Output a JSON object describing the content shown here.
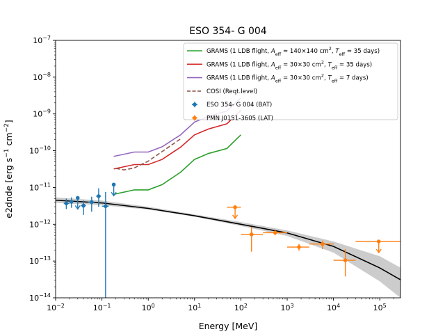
{
  "chart_data": {
    "type": "scatter",
    "title": "ESO 354- G 004",
    "xlabel": "Energy [MeV]",
    "ylabel": "e2dnde [erg s$^{-1}$ cm$^{-2}$]",
    "xscale": "log",
    "yscale": "log",
    "xlim": [
      0.01,
      280000
    ],
    "ylim": [
      1e-14,
      1e-07
    ],
    "grid": false,
    "legend_position": "top-right",
    "x_ticks": [
      {
        "value": 0.01,
        "base": "10",
        "exp": "−2"
      },
      {
        "value": 0.1,
        "base": "10",
        "exp": "−1"
      },
      {
        "value": 1,
        "base": "10",
        "exp": "0"
      },
      {
        "value": 10,
        "base": "10",
        "exp": "1"
      },
      {
        "value": 100,
        "base": "10",
        "exp": "2"
      },
      {
        "value": 1000,
        "base": "10",
        "exp": "3"
      },
      {
        "value": 10000,
        "base": "10",
        "exp": "4"
      },
      {
        "value": 100000,
        "base": "10",
        "exp": "5"
      }
    ],
    "y_ticks": [
      {
        "value": 1e-14,
        "base": "10",
        "exp": "−14"
      },
      {
        "value": 1e-13,
        "base": "10",
        "exp": "−13"
      },
      {
        "value": 1e-12,
        "base": "10",
        "exp": "−12"
      },
      {
        "value": 1e-11,
        "base": "10",
        "exp": "−11"
      },
      {
        "value": 1e-10,
        "base": "10",
        "exp": "−10"
      },
      {
        "value": 1e-09,
        "base": "10",
        "exp": "−9"
      },
      {
        "value": 1e-08,
        "base": "10",
        "exp": "−8"
      },
      {
        "value": 1e-07,
        "base": "10",
        "exp": "−7"
      }
    ],
    "lines": [
      {
        "name": "GRAMS (1 LDB flight, A_eff = 140×140 cm², T_eff = 35 days)",
        "color": "#2ca02c",
        "style": "solid",
        "x": [
          0.18,
          0.5,
          1,
          2,
          5,
          10,
          20,
          50,
          100
        ],
        "y": [
          6.5e-12,
          8.6e-12,
          8.6e-12,
          1.2e-11,
          2.6e-11,
          5.8e-11,
          8.4e-11,
          1.15e-10,
          2.7e-10
        ]
      },
      {
        "name": "GRAMS (1 LDB flight, A_eff = 30×30 cm², T_eff = 35 days)",
        "color": "#d62728",
        "style": "solid",
        "x": [
          0.18,
          0.5,
          1,
          2,
          5,
          10,
          20,
          50,
          100
        ],
        "y": [
          3.2e-11,
          4.2e-11,
          4.2e-11,
          5.8e-11,
          1.25e-10,
          2.7e-10,
          3.9e-10,
          5.4e-10,
          1.25e-09
        ]
      },
      {
        "name": "GRAMS (1 LDB flight, A_eff = 30×30 cm², T_eff = 7 days)",
        "color": "#9467bd",
        "style": "solid",
        "x": [
          0.18,
          0.5,
          1,
          2,
          5,
          10,
          20,
          50,
          100
        ],
        "y": [
          7e-11,
          9.2e-11,
          9.2e-11,
          1.28e-10,
          2.7e-10,
          6e-10,
          8.6e-10,
          1.2e-09,
          2.75e-09
        ]
      },
      {
        "name": "COSI (Reqt.level)",
        "color": "#8c564b",
        "style": "dashed",
        "x": [
          0.2,
          0.3,
          0.5,
          1,
          2,
          5
        ],
        "y": [
          3.3e-11,
          3e-11,
          3.4e-11,
          5.2e-11,
          9.5e-11,
          2.1e-10
        ]
      }
    ],
    "model": {
      "color": "#000000",
      "x": [
        0.01,
        0.1,
        1,
        10,
        100,
        1000,
        10000,
        100000,
        280000
      ],
      "y": [
        4.5e-12,
        3.8e-12,
        2.7e-12,
        1.7e-12,
        1e-12,
        5.8e-13,
        2.5e-13,
        6.5e-14,
        3.1e-14
      ],
      "band_lower": [
        3.8e-12,
        3.3e-12,
        2.5e-12,
        1.6e-12,
        9e-13,
        4.8e-13,
        1.7e-13,
        2.8e-14,
        1e-14
      ],
      "band_upper": [
        5.4e-12,
        4.4e-12,
        3e-12,
        1.85e-12,
        1.15e-12,
        6.8e-13,
        3.4e-13,
        1.35e-13,
        6.6e-14
      ],
      "band_color": "#cccccc"
    },
    "series": [
      {
        "name": "ESO 354- G 004 (BAT)",
        "color": "#1f77b4",
        "points": [
          {
            "x": 0.017,
            "y": 3.7e-12,
            "y_lo": 2.6e-12,
            "y_hi": 5e-12,
            "x_lo": 0.015,
            "x_hi": 0.02
          },
          {
            "x": 0.022,
            "y": 4.1e-12,
            "y_lo": 2.8e-12,
            "y_hi": 5.4e-12,
            "x_lo": 0.02,
            "x_hi": 0.024
          },
          {
            "x": 0.03,
            "y": 5.2e-12,
            "upper_limit": true
          },
          {
            "x": 0.04,
            "y": 3.2e-12,
            "y_lo": 1.8e-12,
            "y_hi": 4.4e-12,
            "x_lo": 0.035,
            "x_hi": 0.045
          },
          {
            "x": 0.06,
            "y": 4e-12,
            "y_lo": 2.2e-12,
            "y_hi": 5.6e-12,
            "x_lo": 0.05,
            "x_hi": 0.07
          },
          {
            "x": 0.085,
            "y": 5.8e-12,
            "y_lo": 3e-12,
            "y_hi": 9.5e-12,
            "x_lo": 0.075,
            "x_hi": 0.095
          },
          {
            "x": 0.12,
            "y": 3.1e-12,
            "y_lo": 1e-14,
            "y_hi": 7.5e-12,
            "x_lo": 0.1,
            "x_hi": 0.14
          },
          {
            "x": 0.18,
            "y": 1.2e-11,
            "upper_limit": true
          }
        ]
      },
      {
        "name": "PMN J0151-3605 (LAT)",
        "color": "#ff7f0e",
        "points": [
          {
            "x": 75,
            "y": 2.9e-12,
            "upper_limit": true,
            "x_lo": 50,
            "x_hi": 100
          },
          {
            "x": 170,
            "y": 5.3e-13,
            "y_lo": 1.8e-13,
            "y_hi": 8.5e-13,
            "x_lo": 100,
            "x_hi": 300
          },
          {
            "x": 550,
            "y": 5.9e-13,
            "y_lo": 5e-13,
            "y_hi": 6.8e-13,
            "x_lo": 300,
            "x_hi": 1000
          },
          {
            "x": 1800,
            "y": 2.4e-13,
            "y_lo": 1.9e-13,
            "y_hi": 2.9e-13,
            "x_lo": 1000,
            "x_hi": 3000
          },
          {
            "x": 5800,
            "y": 2.9e-13,
            "y_lo": 2.1e-13,
            "y_hi": 3.6e-13,
            "x_lo": 3000,
            "x_hi": 10000
          },
          {
            "x": 18000,
            "y": 1.05e-13,
            "y_lo": 3.8e-14,
            "y_hi": 2.1e-13,
            "x_lo": 10000,
            "x_hi": 30000
          },
          {
            "x": 95000,
            "y": 3.4e-13,
            "upper_limit": true,
            "x_lo": 30000,
            "x_hi": 280000
          }
        ]
      }
    ],
    "legend": [
      {
        "kind": "line",
        "color": "#2ca02c",
        "dashed": false,
        "pre": "GRAMS (1 LDB flight, ",
        "mid1": "A",
        "sub1": "eff",
        "mid2": " = 140×140 cm",
        "sup1": "2",
        "mid3": ", ",
        "mid4": "T",
        "sub2": "eff",
        "post": " = 35 days)"
      },
      {
        "kind": "line",
        "color": "#d62728",
        "dashed": false,
        "pre": "GRAMS (1 LDB flight, ",
        "mid1": "A",
        "sub1": "eff",
        "mid2": " = 30×30 cm",
        "sup1": "2",
        "mid3": ", ",
        "mid4": "T",
        "sub2": "eff",
        "post": " = 35 days)"
      },
      {
        "kind": "line",
        "color": "#9467bd",
        "dashed": false,
        "pre": "GRAMS (1 LDB flight, ",
        "mid1": "A",
        "sub1": "eff",
        "mid2": " = 30×30 cm",
        "sup1": "2",
        "mid3": ", ",
        "mid4": "T",
        "sub2": "eff",
        "post": " = 7 days)"
      },
      {
        "kind": "line",
        "color": "#8c564b",
        "dashed": true,
        "pre": "COSI (Reqt.level)"
      },
      {
        "kind": "marker",
        "color": "#1f77b4",
        "pre": "ESO 354- G 004 (BAT)"
      },
      {
        "kind": "marker",
        "color": "#ff7f0e",
        "pre": "PMN J0151-3605 (LAT)"
      }
    ]
  }
}
